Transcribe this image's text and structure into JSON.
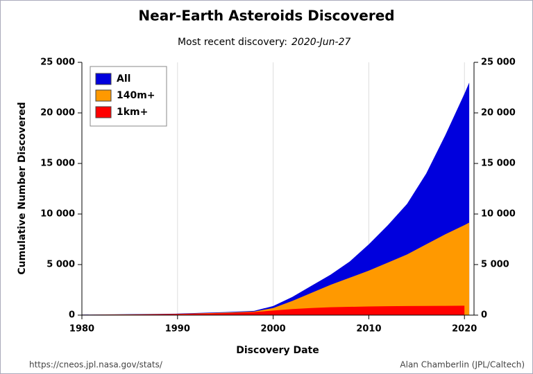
{
  "chart_data": {
    "type": "area",
    "title": "Near-Earth Asteroids Discovered",
    "subtitle": "Most recent discovery:",
    "subtitle_date": "2020-Jun-27",
    "xlabel": "Discovery Date",
    "ylabel": "Cumulative Number Discovered",
    "source_left": "https://cneos.jpl.nasa.gov/stats/",
    "source_right": "Alan Chamberlin (JPL/Caltech)",
    "x": [
      1980,
      1985,
      1990,
      1995,
      1998,
      2000,
      2002,
      2004,
      2006,
      2008,
      2010,
      2012,
      2014,
      2016,
      2018,
      2020,
      2020.5
    ],
    "series": [
      {
        "name": "All",
        "color": "#0000dd",
        "values": [
          50,
          90,
          150,
          300,
          420,
          900,
          1800,
          2900,
          4000,
          5300,
          7000,
          8900,
          11000,
          14000,
          17800,
          21900,
          23000
        ]
      },
      {
        "name": "140m+",
        "color": "#ff9900",
        "values": [
          40,
          70,
          120,
          250,
          350,
          700,
          1400,
          2200,
          3000,
          3700,
          4400,
          5200,
          6000,
          7000,
          8000,
          8900,
          9150
        ]
      },
      {
        "name": "1km+",
        "color": "#ff0000",
        "values": [
          30,
          50,
          100,
          200,
          300,
          450,
          600,
          700,
          780,
          820,
          860,
          880,
          900,
          910,
          920,
          930,
          null
        ]
      }
    ],
    "xlim": [
      1980,
      2021
    ],
    "xticks": [
      1980,
      1990,
      2000,
      2010,
      2020
    ],
    "ylim": [
      0,
      25000
    ],
    "yticks": [
      0,
      {
        "value": 5000,
        "label": "5 000"
      },
      {
        "value": 10000,
        "label": "10 000"
      },
      {
        "value": 15000,
        "label": "15 000"
      },
      {
        "value": 20000,
        "label": "20 000"
      },
      {
        "value": 25000,
        "label": "25 000"
      }
    ],
    "y2lim": [
      0,
      25000
    ],
    "y2ticks": [
      0,
      {
        "value": 5000,
        "label": "5 000"
      },
      {
        "value": 10000,
        "label": "10 000"
      },
      {
        "value": 15000,
        "label": "15 000"
      },
      {
        "value": 20000,
        "label": "20 000"
      },
      {
        "value": 25000,
        "label": "25 000"
      }
    ],
    "grid": "x",
    "legend": "upper-left"
  }
}
